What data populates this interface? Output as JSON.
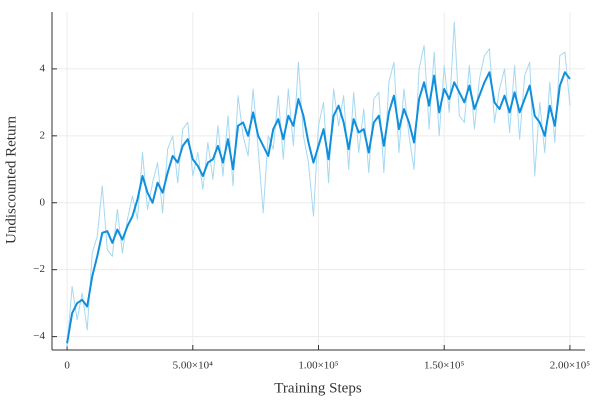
{
  "chart_data": {
    "type": "line",
    "xlabel": "Training Steps",
    "ylabel": "Undiscounted Return",
    "x": [
      0,
      2000,
      4000,
      6000,
      8000,
      10000,
      12000,
      14000,
      16000,
      18000,
      20000,
      22000,
      24000,
      26000,
      28000,
      30000,
      32000,
      34000,
      36000,
      38000,
      40000,
      42000,
      44000,
      46000,
      48000,
      50000,
      52000,
      54000,
      56000,
      58000,
      60000,
      62000,
      64000,
      66000,
      68000,
      70000,
      72000,
      74000,
      76000,
      78000,
      80000,
      82000,
      84000,
      86000,
      88000,
      90000,
      92000,
      94000,
      96000,
      98000,
      100000,
      102000,
      104000,
      106000,
      108000,
      110000,
      112000,
      114000,
      116000,
      118000,
      120000,
      122000,
      124000,
      126000,
      128000,
      130000,
      132000,
      134000,
      136000,
      138000,
      140000,
      142000,
      144000,
      146000,
      148000,
      150000,
      152000,
      154000,
      156000,
      158000,
      160000,
      162000,
      164000,
      166000,
      168000,
      170000,
      172000,
      174000,
      176000,
      178000,
      180000,
      182000,
      184000,
      186000,
      188000,
      190000,
      192000,
      194000,
      196000,
      198000,
      200000
    ],
    "series": [
      {
        "color": "#a6d8f2",
        "width": 1,
        "values": [
          -4.3,
          -2.5,
          -3.5,
          -2.7,
          -3.8,
          -1.5,
          -1.0,
          0.5,
          -1.4,
          -1.6,
          -0.2,
          -1.5,
          -0.5,
          0.2,
          -0.5,
          1.5,
          -0.2,
          0.6,
          1.2,
          -0.3,
          1.6,
          2.0,
          0.6,
          2.2,
          2.4,
          0.8,
          1.5,
          0.4,
          1.8,
          0.7,
          2.3,
          0.8,
          2.6,
          0.5,
          3.2,
          2.0,
          1.4,
          3.4,
          1.6,
          -0.3,
          2.0,
          1.6,
          3.2,
          1.3,
          3.4,
          1.7,
          4.2,
          2.0,
          1.2,
          -0.4,
          2.3,
          3.0,
          0.6,
          3.4,
          2.3,
          3.2,
          1.0,
          3.3,
          1.5,
          2.8,
          0.9,
          3.1,
          3.3,
          0.9,
          3.6,
          4.2,
          1.5,
          3.4,
          2.0,
          1.0,
          4.0,
          4.7,
          2.2,
          4.5,
          2.0,
          4.1,
          2.7,
          5.4,
          2.6,
          2.4,
          4.1,
          2.2,
          3.7,
          4.4,
          4.6,
          2.4,
          3.4,
          4.0,
          2.1,
          4.1,
          1.9,
          3.8,
          4.2,
          0.8,
          3.0,
          1.5,
          3.6,
          1.8,
          4.4,
          4.5,
          2.9
        ]
      },
      {
        "color": "#0f8fdc",
        "width": 2,
        "values": [
          -4.2,
          -3.3,
          -3.0,
          -2.9,
          -3.1,
          -2.2,
          -1.6,
          -0.9,
          -0.85,
          -1.2,
          -0.8,
          -1.1,
          -0.7,
          -0.4,
          0.1,
          0.8,
          0.3,
          0.0,
          0.6,
          0.3,
          0.9,
          1.4,
          1.2,
          1.7,
          1.9,
          1.3,
          1.1,
          0.8,
          1.2,
          1.3,
          1.7,
          1.2,
          1.9,
          1.0,
          2.3,
          2.4,
          2.0,
          2.7,
          2.0,
          1.7,
          1.4,
          2.2,
          2.5,
          1.9,
          2.6,
          2.3,
          3.1,
          2.6,
          1.8,
          1.2,
          1.7,
          2.2,
          1.3,
          2.6,
          2.9,
          2.4,
          1.6,
          2.5,
          2.1,
          2.2,
          1.5,
          2.4,
          2.6,
          1.7,
          2.7,
          3.2,
          2.2,
          2.8,
          2.4,
          1.8,
          3.1,
          3.6,
          2.9,
          3.8,
          2.7,
          3.4,
          3.1,
          3.6,
          3.3,
          3.0,
          3.5,
          2.8,
          3.2,
          3.6,
          3.9,
          3.0,
          2.8,
          3.2,
          2.7,
          3.3,
          2.7,
          3.1,
          3.5,
          2.6,
          2.4,
          2.0,
          2.9,
          2.3,
          3.5,
          3.9,
          3.7
        ]
      }
    ],
    "xlim": [
      -6000,
      206000
    ],
    "ylim": [
      -4.4,
      5.7
    ],
    "xticks": [
      0,
      {
        "value": 50000,
        "label": "5.00×10⁴"
      },
      {
        "value": 100000,
        "label": "1.00×10⁵"
      },
      {
        "value": 150000,
        "label": "1.50×10⁵"
      },
      {
        "value": 200000,
        "label": "2.00×10⁵"
      }
    ],
    "yticks": [
      {
        "value": -4,
        "label": "−4"
      },
      {
        "value": -2,
        "label": "−2"
      },
      0,
      2,
      4
    ],
    "grid": true
  }
}
